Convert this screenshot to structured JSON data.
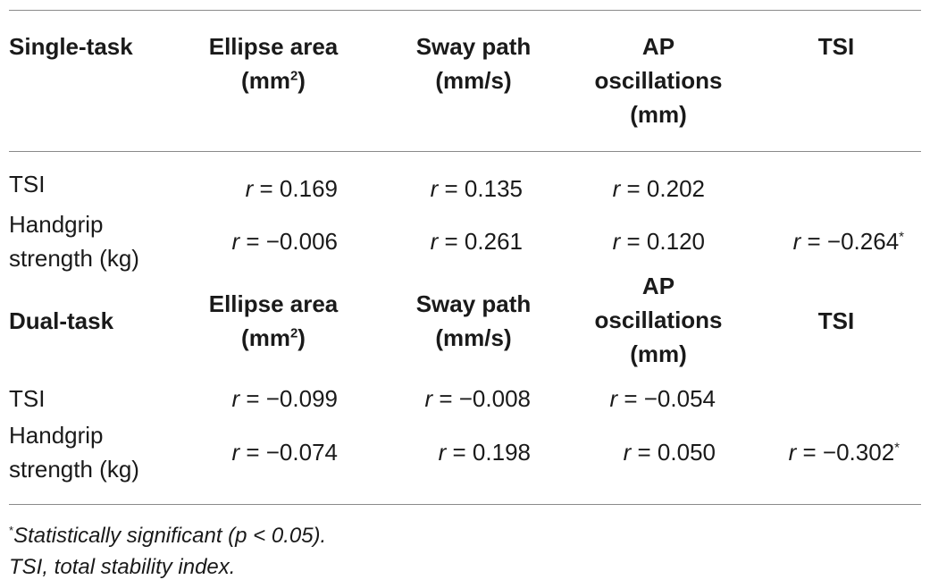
{
  "single": {
    "title": "Single-task",
    "headers": {
      "ellipse": [
        "Ellipse area",
        "(mm",
        "2",
        ")"
      ],
      "sway": [
        "Sway path",
        "(mm/s)"
      ],
      "ap": [
        "AP",
        "oscillations",
        "(mm)"
      ],
      "tsi": "TSI"
    },
    "rows": [
      {
        "label": [
          "TSI"
        ],
        "values": [
          "0.169",
          "0.135",
          "0.202",
          ""
        ],
        "sig": [
          false,
          false,
          false,
          false
        ]
      },
      {
        "label": [
          "Handgrip",
          "strength (kg)"
        ],
        "values": [
          "−0.006",
          "0.261",
          "0.120",
          "−0.264"
        ],
        "sig": [
          false,
          false,
          false,
          true
        ]
      }
    ]
  },
  "dual": {
    "title": "Dual-task",
    "headers": {
      "ellipse": [
        "Ellipse area",
        "(mm",
        "2",
        ")"
      ],
      "sway": [
        "Sway path",
        "(mm/s)"
      ],
      "ap": [
        "AP",
        "oscillations",
        "(mm)"
      ],
      "tsi": "TSI"
    },
    "rows": [
      {
        "label": [
          "TSI"
        ],
        "values": [
          "−0.099",
          "−0.008",
          "−0.054",
          ""
        ],
        "sig": [
          false,
          false,
          false,
          false
        ]
      },
      {
        "label": [
          "Handgrip",
          "strength (kg)"
        ],
        "values": [
          "−0.074",
          "0.198",
          "0.050",
          "−0.302"
        ],
        "sig": [
          false,
          false,
          false,
          true
        ]
      }
    ]
  },
  "r_symbol": "r",
  "eq": " = ",
  "sig_mark": "*",
  "footnotes": {
    "sig_mark": "*",
    "sig_text": "Statistically significant (p < 0.05).",
    "abbrev": "TSI, total stability index."
  }
}
